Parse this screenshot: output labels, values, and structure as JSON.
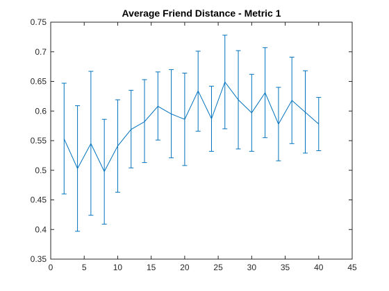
{
  "chart_data": {
    "type": "line",
    "title": "Average Friend Distance - Metric 1",
    "xlabel": "",
    "ylabel": "",
    "xlim": [
      0,
      45
    ],
    "ylim": [
      0.35,
      0.75
    ],
    "xticks": [
      0,
      5,
      10,
      15,
      20,
      25,
      30,
      35,
      40,
      45
    ],
    "yticks": [
      0.35,
      0.4,
      0.45,
      0.5,
      0.55,
      0.6,
      0.65,
      0.7,
      0.75
    ],
    "grid": false,
    "box": true,
    "series": [
      {
        "color": "#0072bd",
        "x": [
          2,
          4,
          6,
          8,
          10,
          12,
          14,
          16,
          18,
          20,
          22,
          24,
          26,
          28,
          30,
          32,
          34,
          36,
          38,
          40
        ],
        "y": [
          0.553,
          0.503,
          0.545,
          0.498,
          0.541,
          0.569,
          0.582,
          0.608,
          0.595,
          0.586,
          0.634,
          0.587,
          0.649,
          0.619,
          0.597,
          0.631,
          0.578,
          0.618,
          0.598,
          0.578
        ],
        "error_lower": [
          0.46,
          0.397,
          0.424,
          0.409,
          0.463,
          0.504,
          0.513,
          0.551,
          0.521,
          0.508,
          0.566,
          0.532,
          0.57,
          0.536,
          0.532,
          0.555,
          0.516,
          0.545,
          0.529,
          0.533
        ],
        "error_upper": [
          0.647,
          0.609,
          0.667,
          0.586,
          0.619,
          0.635,
          0.653,
          0.666,
          0.67,
          0.664,
          0.701,
          0.642,
          0.728,
          0.702,
          0.662,
          0.707,
          0.64,
          0.691,
          0.668,
          0.623
        ]
      }
    ]
  }
}
